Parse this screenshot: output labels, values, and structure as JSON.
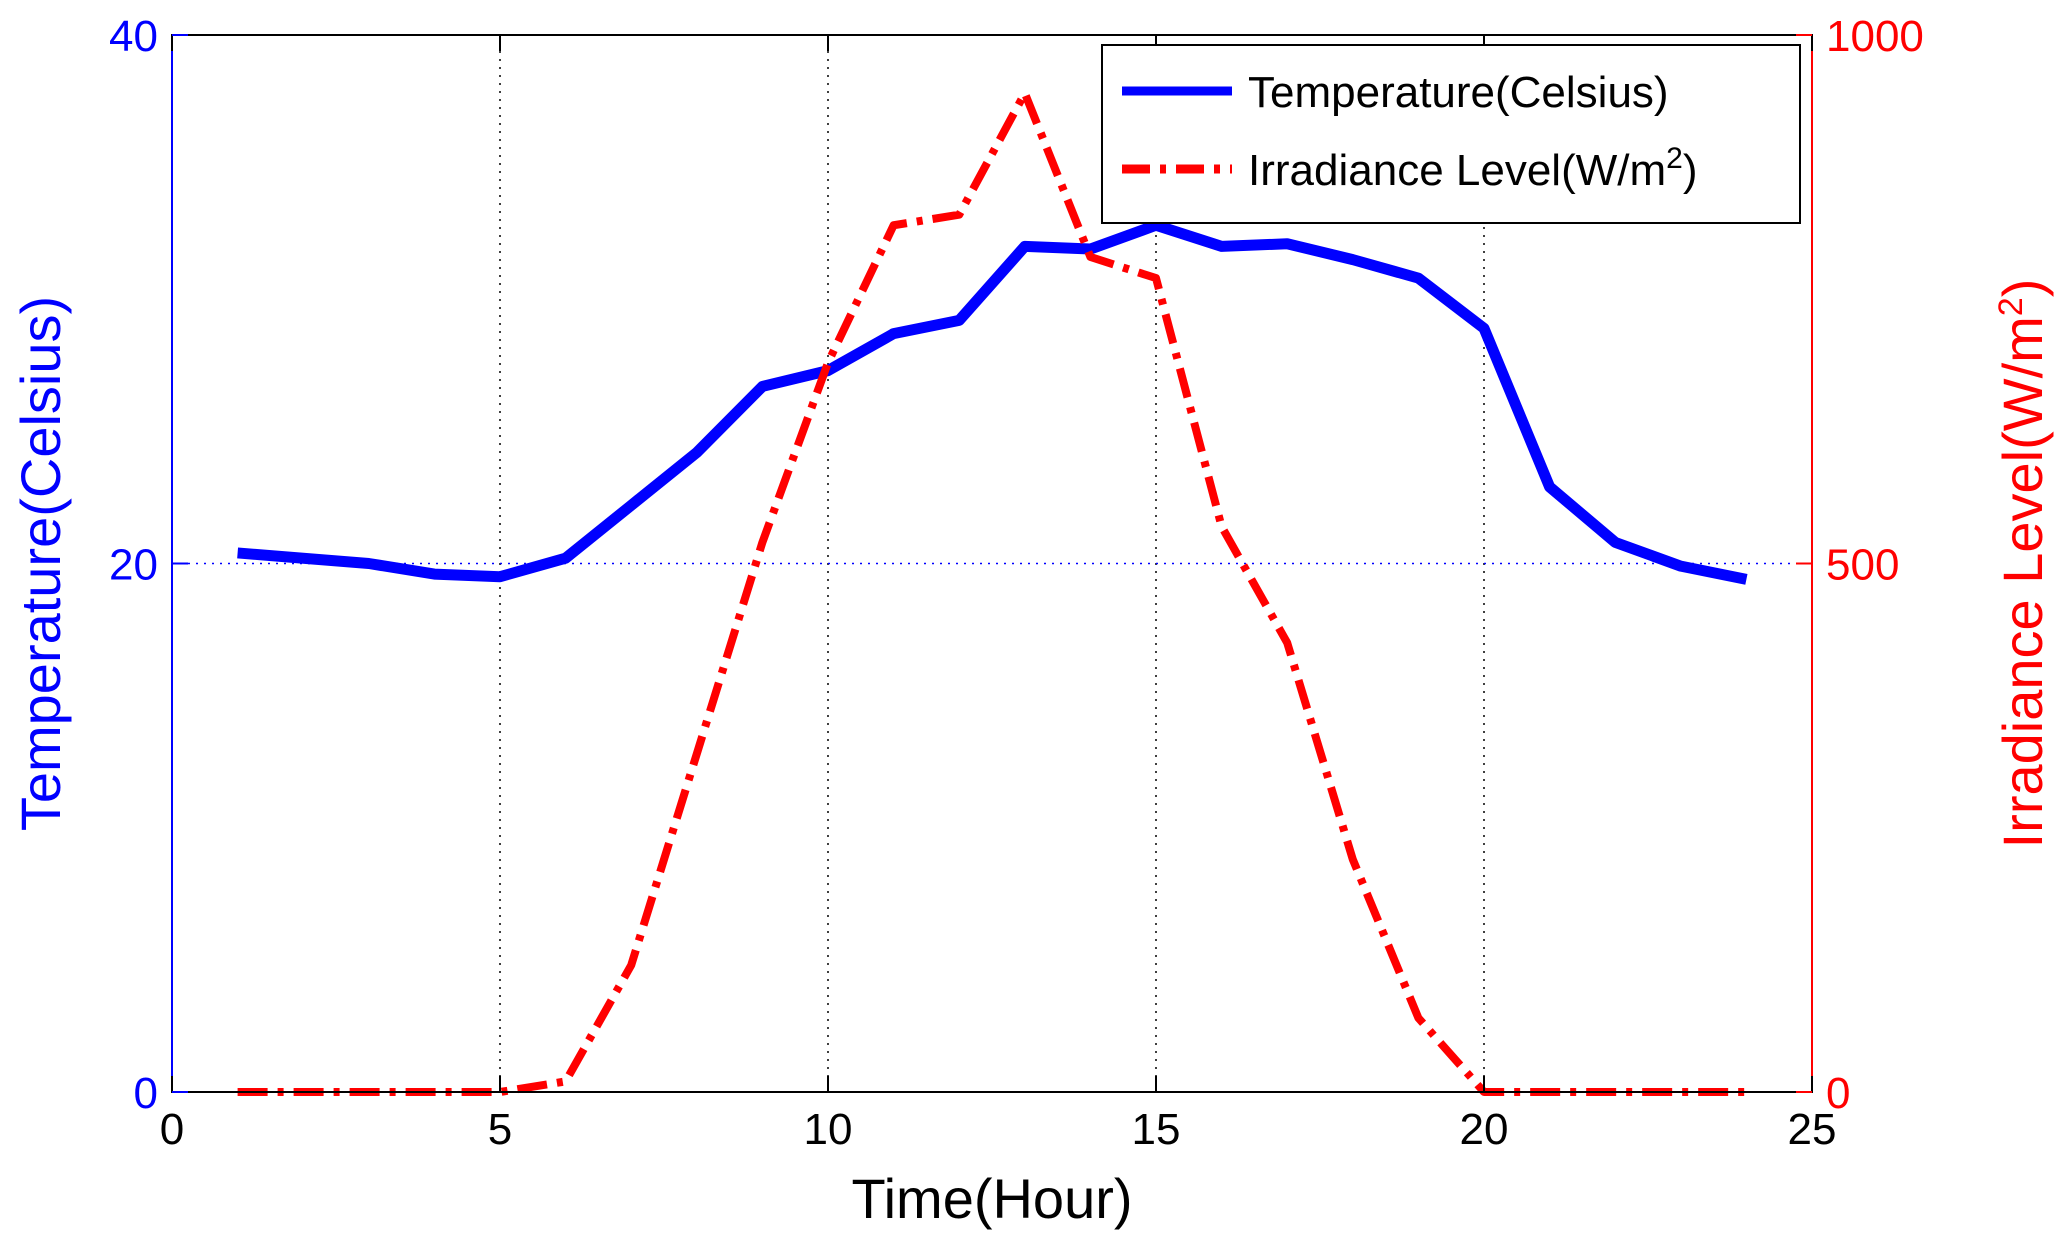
{
  "chart_data": {
    "type": "line",
    "title": "",
    "xlabel": "Time(Hour)",
    "ylabel_left": "Temperature(Celsius)",
    "ylabel_right_prefix": "Irradiance Level(W/m",
    "ylabel_right_sup": "2",
    "ylabel_right_suffix": ")",
    "xlim": [
      0,
      25
    ],
    "ylim_left": [
      0,
      40
    ],
    "ylim_right": [
      0,
      1000
    ],
    "x_ticks": [
      "0",
      "5",
      "10",
      "15",
      "20",
      "25"
    ],
    "x_tick_values": [
      0,
      5,
      10,
      15,
      20,
      25
    ],
    "y_left_ticks": [
      "0",
      "20",
      "40"
    ],
    "y_left_tick_values": [
      0,
      20,
      40
    ],
    "y_right_ticks": [
      "0",
      "500",
      "1000"
    ],
    "y_right_tick_values": [
      0,
      500,
      1000
    ],
    "grid": "dotted",
    "legend_position": "top-right",
    "colors": {
      "temperature": "#0000ff",
      "irradiance": "#ff0000",
      "grid_x": "#000000",
      "grid_y": "#0000ff"
    },
    "series": [
      {
        "name": "Temperature(Celsius)",
        "legend_label": "Temperature(Celsius)",
        "axis": "left",
        "style": "solid",
        "x": [
          1,
          2,
          3,
          4,
          5,
          6,
          7,
          8,
          9,
          10,
          11,
          12,
          13,
          14,
          15,
          16,
          17,
          18,
          19,
          20,
          21,
          22,
          23,
          24
        ],
        "values": [
          20.4,
          20.2,
          20.0,
          19.6,
          19.5,
          20.2,
          22.2,
          24.2,
          26.7,
          27.3,
          28.7,
          29.2,
          32.0,
          31.9,
          32.8,
          32.0,
          32.1,
          31.5,
          30.8,
          28.9,
          22.9,
          20.8,
          19.9,
          19.4
        ]
      },
      {
        "name": "Irradiance Level(W/m2)",
        "legend_label_prefix": "Irradiance Level(W/m",
        "legend_label_sup": "2",
        "legend_label_suffix": ")",
        "axis": "right",
        "style": "dashdot",
        "x": [
          1,
          2,
          3,
          4,
          5,
          6,
          7,
          8,
          9,
          10,
          11,
          12,
          13,
          14,
          15,
          16,
          17,
          18,
          19,
          20,
          21,
          22,
          23,
          24
        ],
        "values": [
          0,
          0,
          0,
          0,
          0,
          10,
          120,
          320,
          520,
          690,
          820,
          830,
          945,
          790,
          770,
          535,
          425,
          220,
          70,
          0,
          0,
          0,
          0,
          0
        ]
      }
    ]
  }
}
